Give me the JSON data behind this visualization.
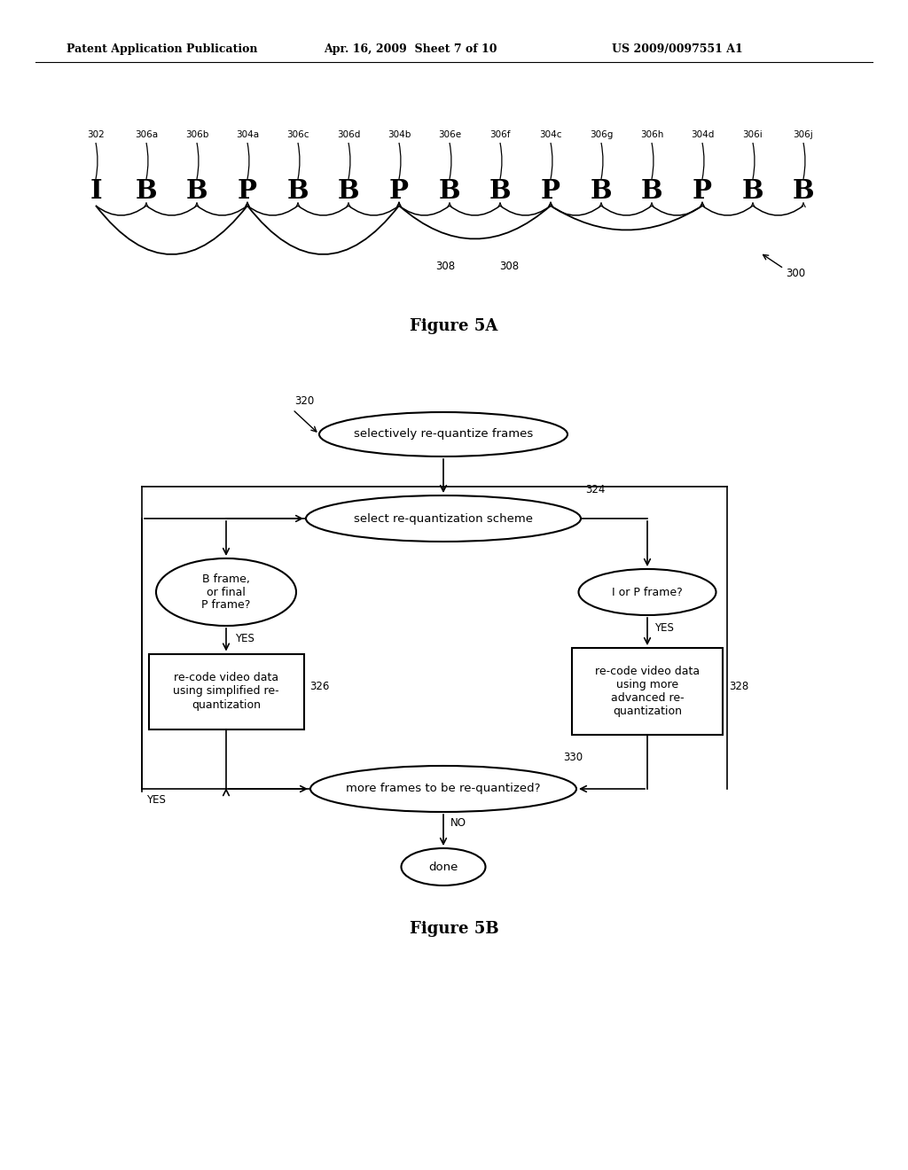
{
  "header_left": "Patent Application Publication",
  "header_mid": "Apr. 16, 2009  Sheet 7 of 10",
  "header_right": "US 2009/0097551 A1",
  "fig5a_caption": "Figure 5A",
  "fig5b_caption": "Figure 5B",
  "frame_labels": [
    "I",
    "B",
    "B",
    "P",
    "B",
    "B",
    "P",
    "B",
    "B",
    "P",
    "B",
    "B",
    "P",
    "B",
    "B"
  ],
  "frame_ids": [
    "302",
    "306a",
    "306b",
    "304a",
    "306c",
    "306d",
    "304b",
    "306e",
    "306f",
    "304c",
    "306g",
    "306h",
    "304d",
    "306i",
    "306j"
  ],
  "ref_300": "300",
  "ref_308a": "308",
  "ref_308b": "308",
  "flowchart": {
    "node_top": {
      "label": "selectively re-quantize frames",
      "ref": "320"
    },
    "node_select": {
      "label": "select re-quantization scheme",
      "ref": "324"
    },
    "node_left_q": {
      "label": "B frame,\nor final\nP frame?"
    },
    "node_right_q": {
      "label": "I or P frame?"
    },
    "node_left_box": {
      "label": "re-code video data\nusing simplified re-\nquantization",
      "ref": "326"
    },
    "node_right_box": {
      "label": "re-code video data\nusing more\nadvanced re-\nquantization",
      "ref": "328"
    },
    "node_more": {
      "label": "more frames to be re-quantized?",
      "ref": "330"
    },
    "node_done": {
      "label": "done"
    },
    "yes_left": "YES",
    "yes_right": "YES",
    "yes_loop": "YES",
    "no_done": "NO"
  },
  "bg_color": "#ffffff",
  "line_color": "#000000",
  "text_color": "#000000"
}
